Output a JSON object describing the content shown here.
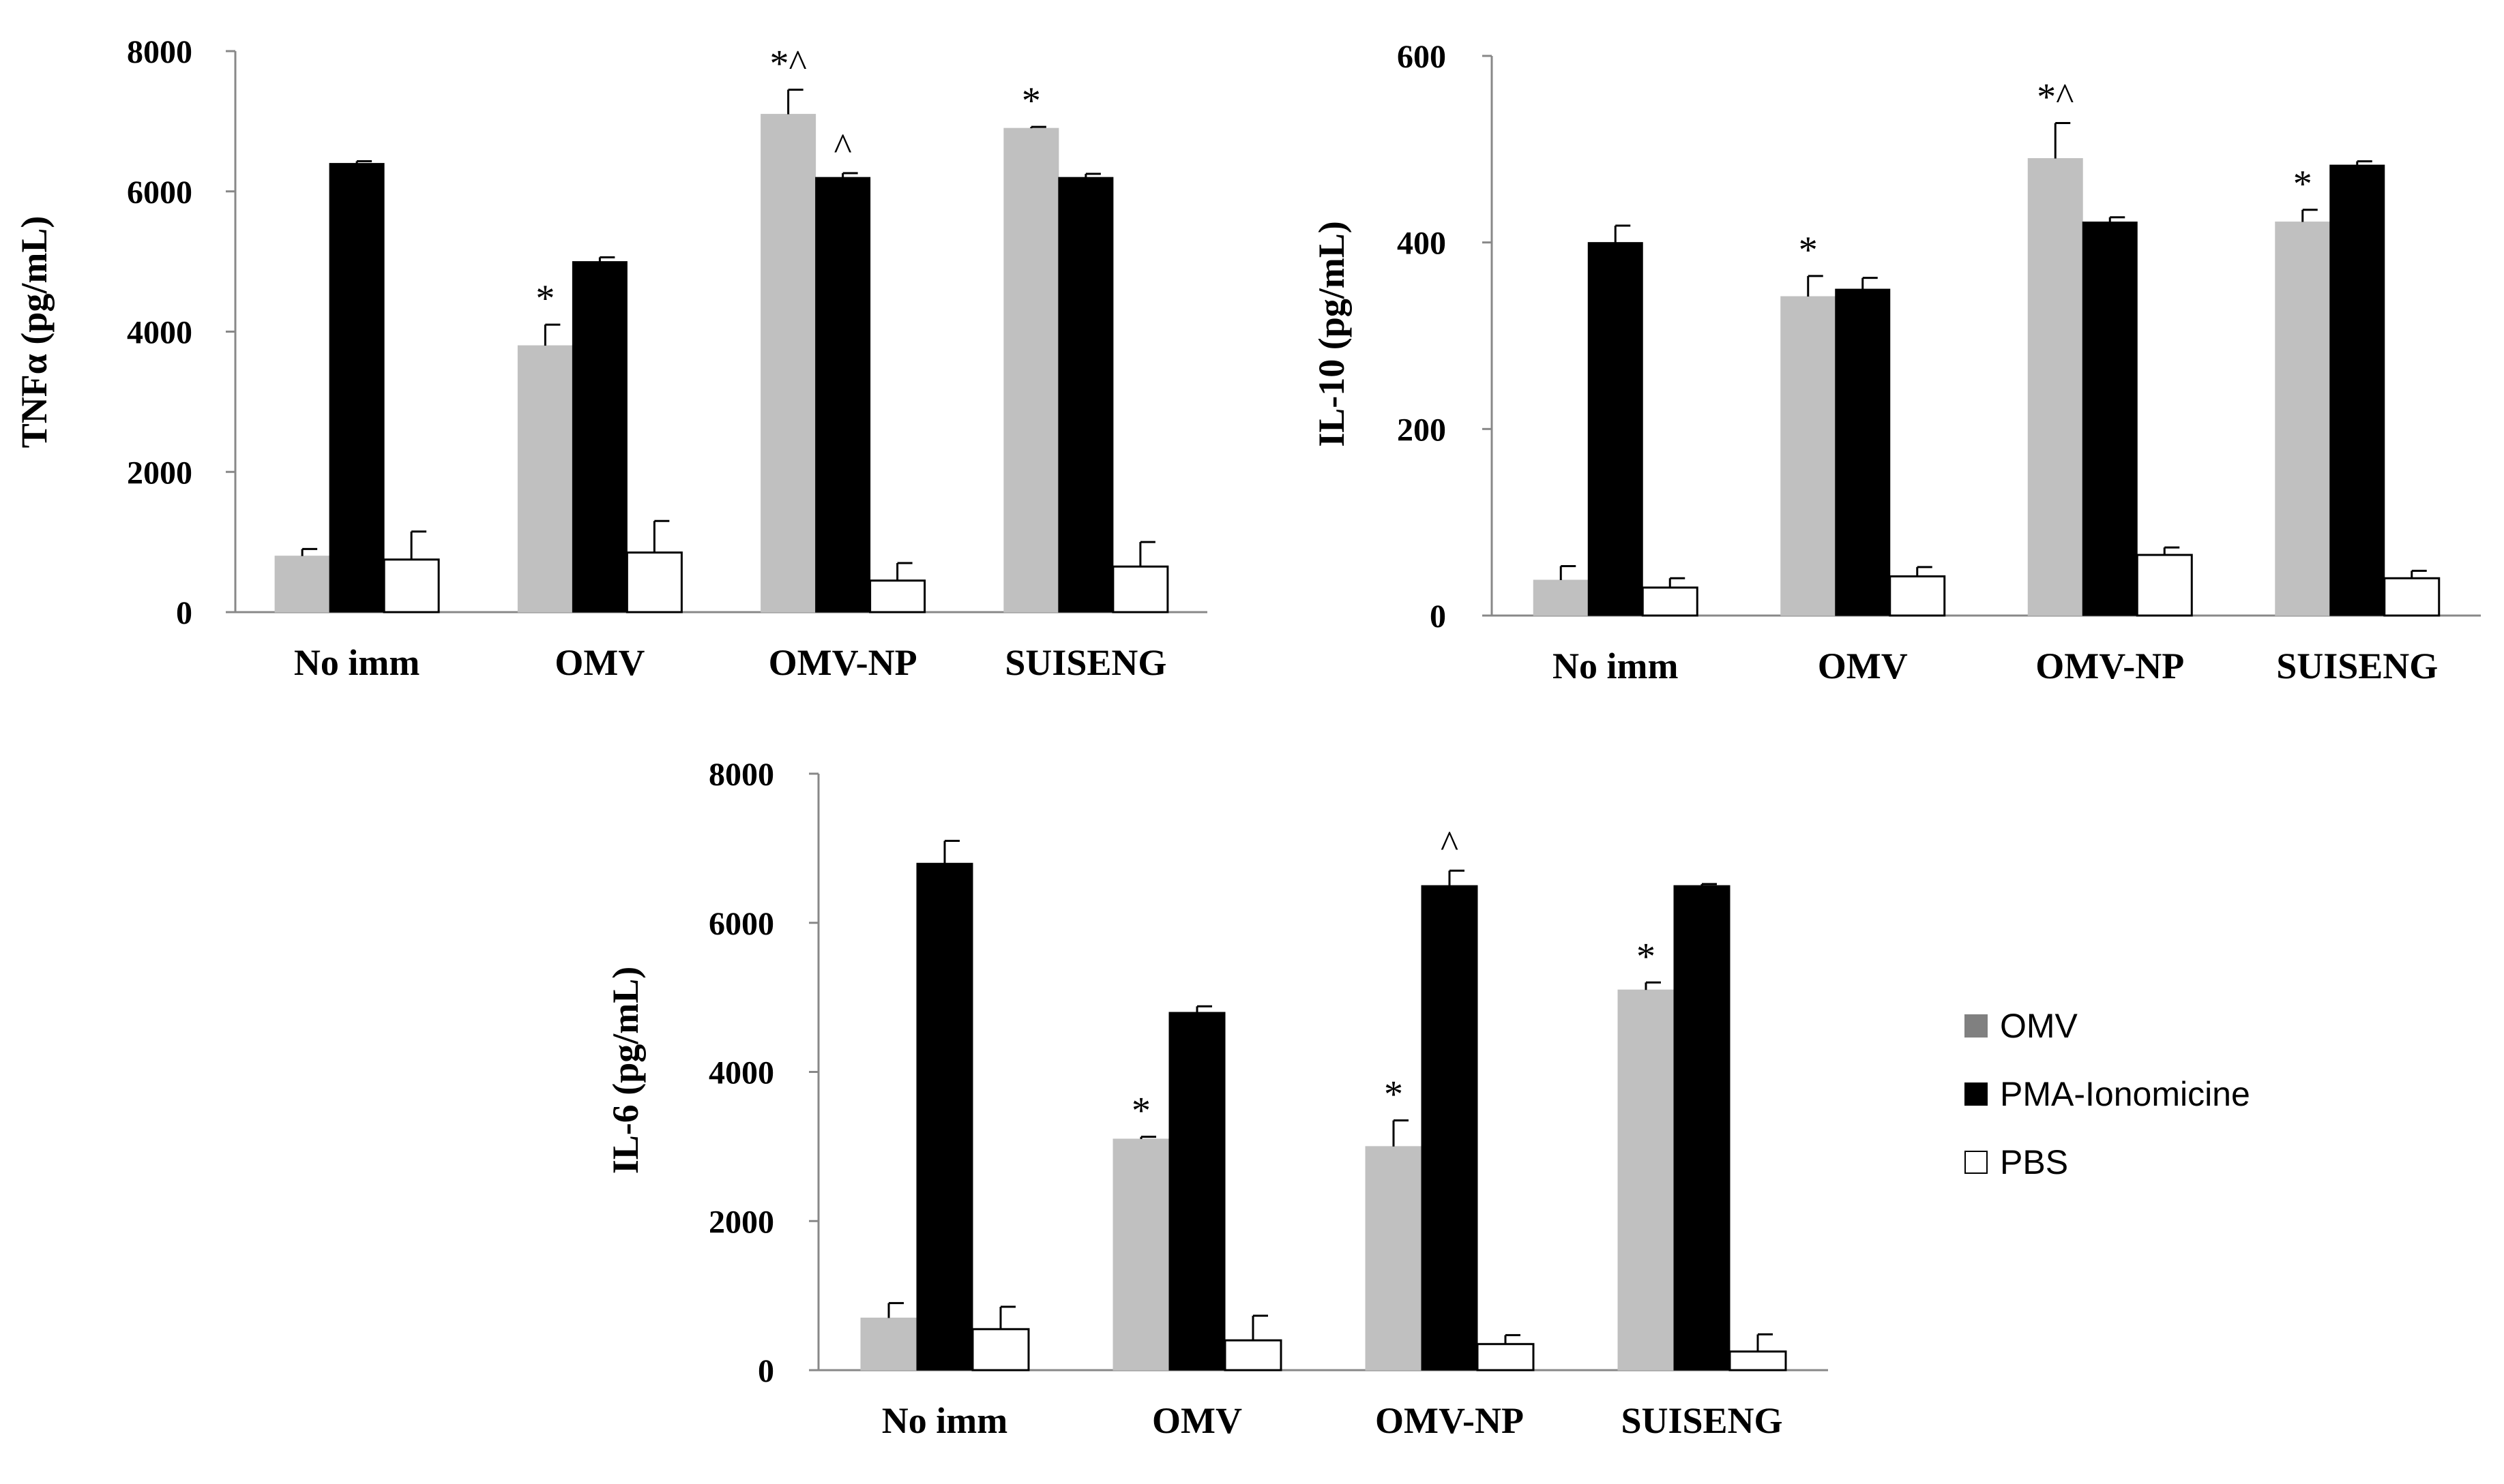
{
  "chart_data": [
    {
      "type": "bar",
      "id": "tnfa",
      "ylabel": "TNFα (pg/mL)",
      "ylim": [
        0,
        8000
      ],
      "yticks": [
        0,
        2000,
        4000,
        6000,
        8000
      ],
      "categories": [
        "No imm",
        "OMV",
        "OMV-NP",
        "SUISENG"
      ],
      "series": [
        {
          "name": "OMV",
          "values": [
            800,
            3800,
            7100,
            6900
          ],
          "errors": [
            100,
            300,
            350,
            20
          ]
        },
        {
          "name": "PMA-Ionomicine",
          "values": [
            6400,
            5000,
            6200,
            6200
          ],
          "errors": [
            30,
            60,
            60,
            50
          ]
        },
        {
          "name": "PBS",
          "values": [
            750,
            850,
            450,
            650
          ],
          "errors": [
            400,
            450,
            250,
            350
          ]
        }
      ],
      "annotations": [
        {
          "category": 1,
          "series": 0,
          "text": "*"
        },
        {
          "category": 2,
          "series": 0,
          "text": "*^"
        },
        {
          "category": 2,
          "series": 1,
          "text": "^"
        },
        {
          "category": 3,
          "series": 0,
          "text": "*"
        }
      ]
    },
    {
      "type": "bar",
      "id": "il10",
      "ylabel": "IL-10 (pg/mL)",
      "ylim": [
        0,
        600
      ],
      "yticks": [
        0,
        200,
        400,
        600
      ],
      "categories": [
        "No imm",
        "OMV",
        "OMV-NP",
        "SUISENG"
      ],
      "series": [
        {
          "name": "OMV",
          "values": [
            38,
            342,
            490,
            422
          ],
          "errors": [
            15,
            22,
            38,
            13
          ]
        },
        {
          "name": "PMA-Ionomicine",
          "values": [
            400,
            350,
            422,
            483
          ],
          "errors": [
            18,
            12,
            5,
            4
          ]
        },
        {
          "name": "PBS",
          "values": [
            30,
            42,
            65,
            40
          ],
          "errors": [
            10,
            10,
            8,
            8
          ]
        }
      ],
      "annotations": [
        {
          "category": 1,
          "series": 0,
          "text": "*"
        },
        {
          "category": 2,
          "series": 0,
          "text": "*^"
        },
        {
          "category": 3,
          "series": 0,
          "text": "*"
        }
      ]
    },
    {
      "type": "bar",
      "id": "il6",
      "ylabel": "IL-6 (pg/mL)",
      "ylim": [
        0,
        8000
      ],
      "yticks": [
        0,
        2000,
        4000,
        6000,
        8000
      ],
      "categories": [
        "No imm",
        "OMV",
        "OMV-NP",
        "SUISENG"
      ],
      "series": [
        {
          "name": "OMV",
          "values": [
            700,
            3100,
            3000,
            5100
          ],
          "errors": [
            200,
            30,
            350,
            100
          ]
        },
        {
          "name": "PMA-Ionomicine",
          "values": [
            6800,
            4800,
            6500,
            6500
          ],
          "errors": [
            300,
            80,
            200,
            20
          ]
        },
        {
          "name": "PBS",
          "values": [
            550,
            400,
            350,
            250
          ],
          "errors": [
            300,
            330,
            120,
            230
          ]
        }
      ],
      "annotations": [
        {
          "category": 1,
          "series": 0,
          "text": "*"
        },
        {
          "category": 2,
          "series": 0,
          "text": "*"
        },
        {
          "category": 2,
          "series": 1,
          "text": "^"
        },
        {
          "category": 3,
          "series": 0,
          "text": "*"
        }
      ]
    }
  ],
  "legend": {
    "placement": "right",
    "items": [
      {
        "label": "OMV",
        "color": "#808080"
      },
      {
        "label": "PMA-Ionomicine",
        "color": "#000000"
      },
      {
        "label": "PBS",
        "color": "#ffffff"
      }
    ]
  },
  "series_colors": [
    "#c0c0c0",
    "#000000",
    "#ffffff"
  ]
}
